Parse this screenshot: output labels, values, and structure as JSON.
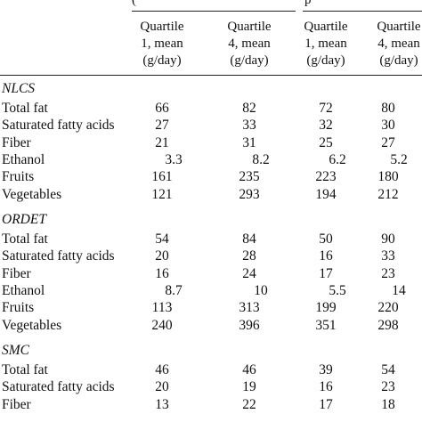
{
  "header": {
    "fragment_left": "(",
    "fragment_right": "p",
    "columns": [
      {
        "line1": "Quartile",
        "line2": "1, mean",
        "line3": "(g/day)"
      },
      {
        "line1": "Quartile",
        "line2": "4, mean",
        "line3": "(g/day)"
      },
      {
        "line1": "Quartile",
        "line2": "1, mean",
        "line3": "(g/day)"
      },
      {
        "line1": "Quartile",
        "line2": "4, mean",
        "line3": "(g/day)"
      }
    ]
  },
  "sections": [
    {
      "title": "NLCS",
      "rows": [
        {
          "label": "Total fat",
          "values": [
            "66",
            "82",
            "72",
            "80"
          ]
        },
        {
          "label": "Saturated fatty acids",
          "values": [
            "27",
            "33",
            "32",
            "30"
          ]
        },
        {
          "label": "Fiber",
          "values": [
            "21",
            "31",
            "25",
            "27"
          ]
        },
        {
          "label": "Ethanol",
          "values": [
            "3.3",
            "8.2",
            "6.2",
            "5.2"
          ]
        },
        {
          "label": "Fruits",
          "values": [
            "161",
            "235",
            "223",
            "180"
          ]
        },
        {
          "label": "Vegetables",
          "values": [
            "121",
            "293",
            "194",
            "212"
          ]
        }
      ]
    },
    {
      "title": "ORDET",
      "rows": [
        {
          "label": "Total fat",
          "values": [
            "54",
            "84",
            "50",
            "90"
          ]
        },
        {
          "label": "Saturated fatty acids",
          "values": [
            "20",
            "28",
            "16",
            "33"
          ]
        },
        {
          "label": "Fiber",
          "values": [
            "16",
            "24",
            "17",
            "23"
          ]
        },
        {
          "label": "Ethanol",
          "values": [
            "8.7",
            "10",
            "5.5",
            "14"
          ]
        },
        {
          "label": "Fruits",
          "values": [
            "113",
            "313",
            "199",
            "220"
          ]
        },
        {
          "label": "Vegetables",
          "values": [
            "240",
            "396",
            "351",
            "298"
          ]
        }
      ]
    },
    {
      "title": "SMC",
      "rows": [
        {
          "label": "Total fat",
          "values": [
            "46",
            "46",
            "39",
            "54"
          ]
        },
        {
          "label": "Saturated fatty acids",
          "values": [
            "20",
            "19",
            "16",
            "23"
          ]
        },
        {
          "label": "Fiber",
          "values": [
            "13",
            "22",
            "17",
            "18"
          ]
        }
      ]
    }
  ]
}
